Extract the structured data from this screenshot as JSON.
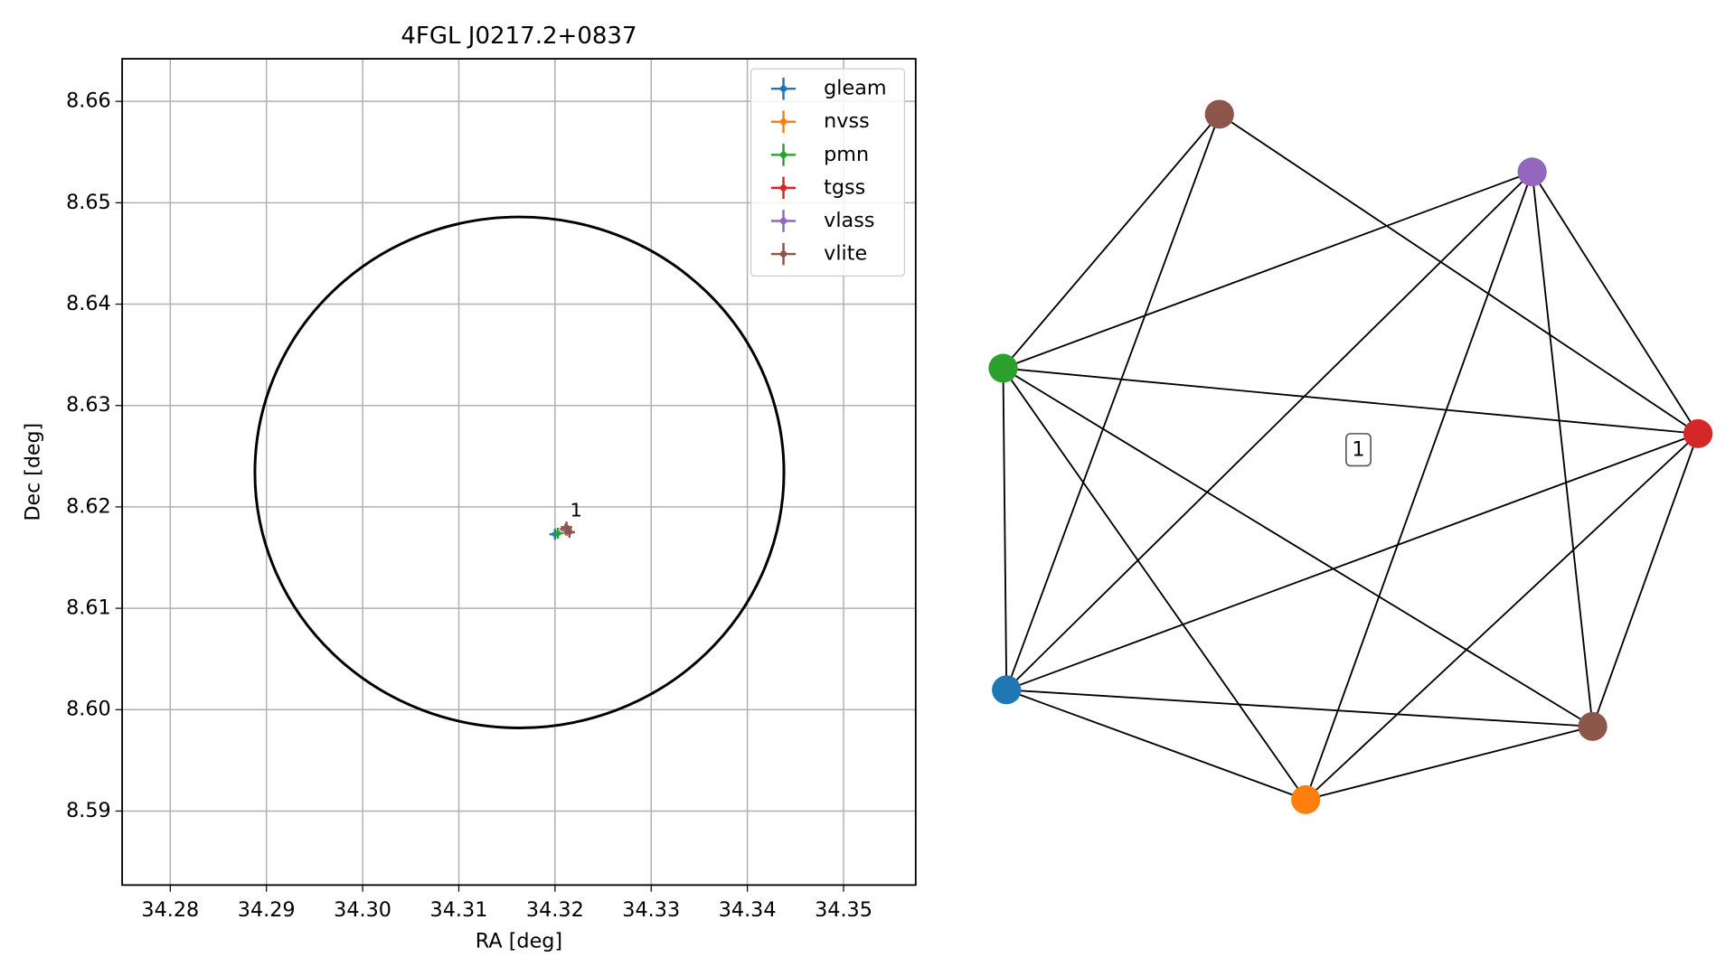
{
  "chart_data": [
    {
      "type": "scatter",
      "title": "4FGL J0217.2+0837",
      "x_label": "RA [deg]",
      "y_label": "Dec [deg]",
      "xlim": [
        34.275,
        34.3575
      ],
      "ylim": [
        8.5827,
        8.6642
      ],
      "xticks": [
        34.28,
        34.29,
        {
          "value": 34.3,
          "label": "34.30"
        },
        34.31,
        34.32,
        34.33,
        34.34,
        34.35
      ],
      "yticks": [
        8.59,
        {
          "value": 8.6,
          "label": "8.60"
        },
        8.61,
        8.62,
        8.63,
        8.64,
        8.65,
        8.66
      ],
      "grid": true,
      "legend": "upper right",
      "ellipse": {
        "x": 34.3163,
        "y": 8.6234,
        "width": 0.055,
        "height": 0.0504,
        "color": "#000000"
      },
      "annotations": [
        {
          "text": "1",
          "x": 34.3222,
          "y": 8.6196
        }
      ],
      "series": [
        {
          "name": "gleam",
          "color": "#1f77b4",
          "x": [
            34.32
          ],
          "values": [
            8.6173
          ]
        },
        {
          "name": "nvss",
          "color": "#ff7f0e",
          "x": [
            34.3212
          ],
          "values": [
            8.6177
          ]
        },
        {
          "name": "pmn",
          "color": "#2ca02c",
          "x": [
            34.3203
          ],
          "values": [
            8.6174
          ]
        },
        {
          "name": "tgss",
          "color": "#d62728",
          "x": [
            34.3211
          ],
          "values": [
            8.6178
          ]
        },
        {
          "name": "vlass",
          "color": "#9467bd",
          "x": [
            34.3212
          ],
          "values": [
            8.6177
          ]
        },
        {
          "name": "vlite",
          "color": "#8c564b",
          "x": [
            34.3212,
            34.3215
          ],
          "values": [
            8.618,
            8.6175
          ]
        }
      ]
    },
    {
      "type": "graph",
      "label": "1",
      "nodes": [
        {
          "color": "#8c564b"
        },
        {
          "color": "#9467bd"
        },
        {
          "color": "#d62728"
        },
        {
          "color": "#8c564b"
        },
        {
          "color": "#ff7f0e"
        },
        {
          "color": "#1f77b4"
        },
        {
          "color": "#2ca02c"
        }
      ],
      "edges": [
        [
          0,
          6
        ],
        [
          0,
          5
        ],
        [
          0,
          2
        ],
        [
          1,
          6
        ],
        [
          1,
          5
        ],
        [
          1,
          4
        ],
        [
          1,
          3
        ],
        [
          1,
          2
        ],
        [
          2,
          6
        ],
        [
          2,
          5
        ],
        [
          2,
          4
        ],
        [
          2,
          3
        ],
        [
          6,
          5
        ],
        [
          6,
          4
        ],
        [
          6,
          3
        ],
        [
          5,
          3
        ],
        [
          5,
          4
        ],
        [
          4,
          3
        ]
      ]
    }
  ]
}
